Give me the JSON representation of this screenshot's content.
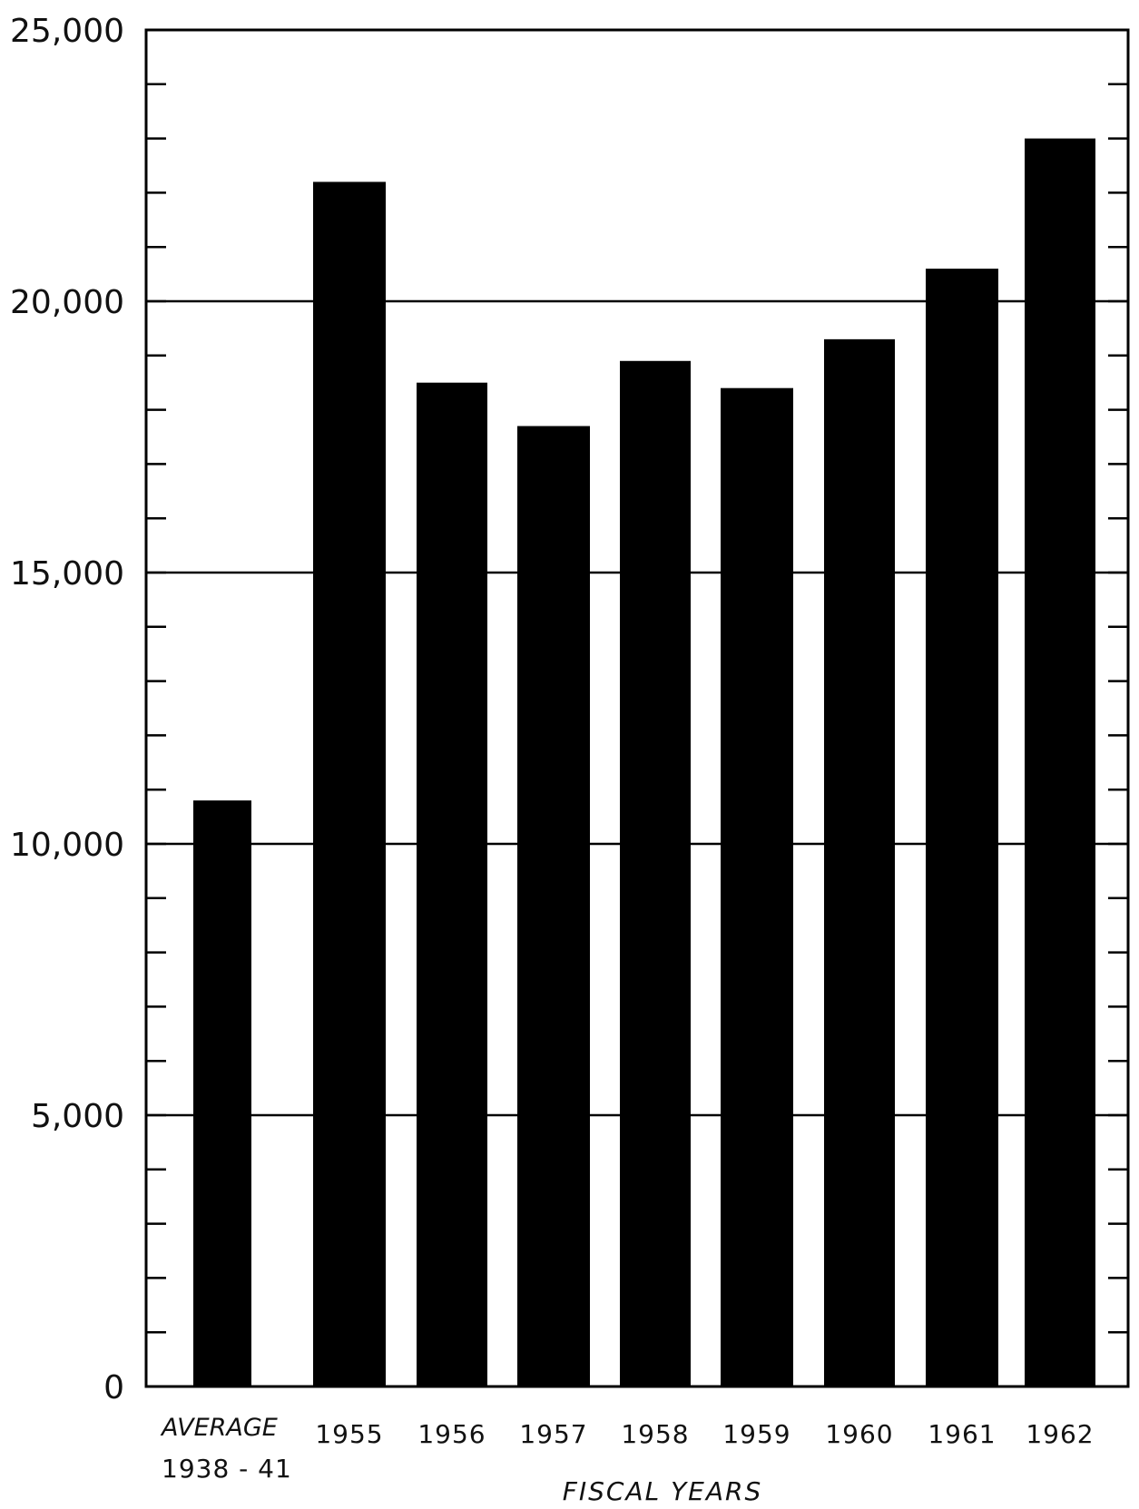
{
  "chart_data": {
    "type": "bar",
    "categories": [
      [
        "AVERAGE",
        "1938 - 41"
      ],
      [
        "1955"
      ],
      [
        "1956"
      ],
      [
        "1957"
      ],
      [
        "1958"
      ],
      [
        "1959"
      ],
      [
        "1960"
      ],
      [
        "1961"
      ],
      [
        "1962"
      ]
    ],
    "values": [
      10800,
      22200,
      18500,
      17700,
      18900,
      18400,
      19300,
      20600,
      23000
    ],
    "xlabel": "FISCAL YEARS",
    "ylabel": "",
    "ylim": [
      0,
      25000
    ],
    "yticks_major": [
      0,
      5000,
      10000,
      15000,
      20000,
      25000
    ],
    "ytick_labels": [
      "0",
      "5,000",
      "10,000",
      "15,000",
      "20,000",
      "25,000"
    ],
    "ytick_minor_step": 1000,
    "grid": "major horizontal",
    "bar_color": "#000000"
  }
}
